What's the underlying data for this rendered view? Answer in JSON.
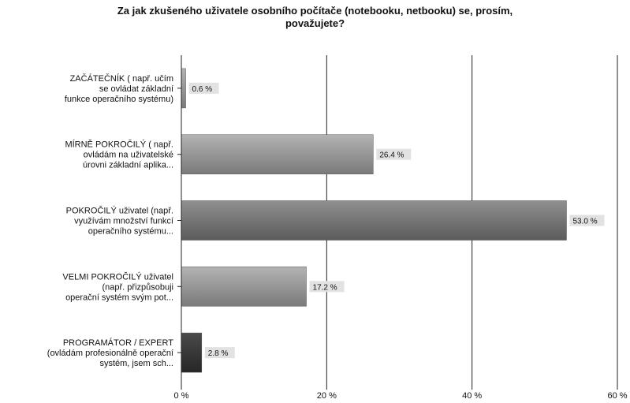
{
  "chart_data": {
    "type": "bar",
    "orientation": "horizontal",
    "title_line1": "Za jak zkušeného uživatele osobního počítače (notebooku, netbooku) se, prosím,",
    "title_line2": "považujete?",
    "categories": [
      [
        "ZAČÁTEČNÍK ( např. učím",
        "se ovládat základní",
        "funkce operačního systému)"
      ],
      [
        "MÍRNĚ POKROČILÝ ( např.",
        "ovládám na uživatelské",
        "úrovni základní aplika..."
      ],
      [
        "POKROČILÝ uživatel (např.",
        "využívám množství funkcí",
        "operačního systému..."
      ],
      [
        "VELMI POKROČILÝ uživatel",
        "(např. přizpůsobuji",
        "operační systém svým pot..."
      ],
      [
        "PROGRAMÁTOR / EXPERT",
        "(ovládám profesionálně operační",
        "systém, jsem sch..."
      ]
    ],
    "values": [
      0.6,
      26.4,
      53.0,
      17.2,
      2.8
    ],
    "data_labels": [
      "0.6 %",
      "26.4 %",
      "53.0 %",
      "17.2 %",
      "2.8 %"
    ],
    "xlim": [
      0,
      60
    ],
    "x_ticks": [
      0,
      20,
      40,
      60
    ],
    "x_tick_labels": [
      "0 %",
      "20 %",
      "40 %",
      "60 %"
    ],
    "grid": true,
    "colors": {
      "bar_default": "#8c8c8c",
      "bar_highlight": "#6e6e6e",
      "bar_dark": "#3a3a3a",
      "label_bg": "#e2e2e2"
    }
  }
}
